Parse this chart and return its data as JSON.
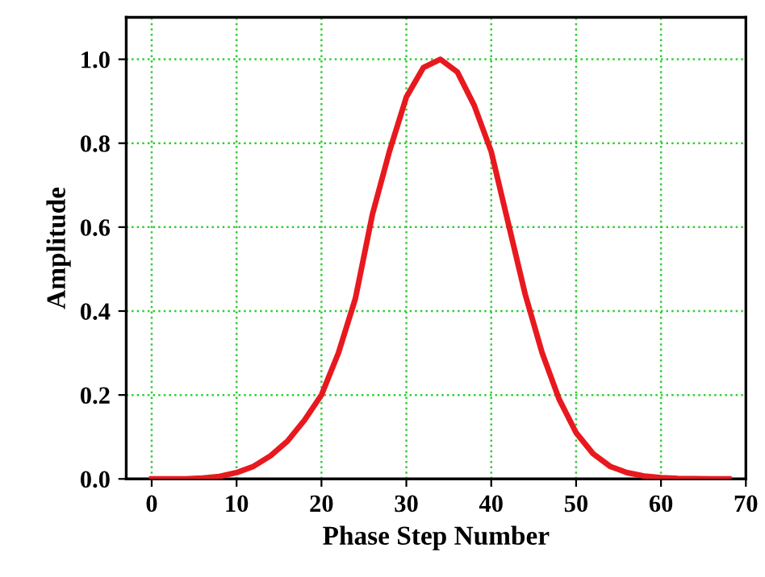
{
  "chart_data": {
    "type": "line",
    "xlabel": "Phase Step Number",
    "ylabel": "Amplitude",
    "x": [
      0,
      4,
      6,
      8,
      10,
      12,
      14,
      16,
      18,
      20,
      22,
      24,
      26,
      28,
      30,
      32,
      34,
      36,
      38,
      40,
      42,
      44,
      46,
      48,
      50,
      52,
      54,
      56,
      58,
      60,
      62,
      66,
      68
    ],
    "series": [
      {
        "color": "#e8191e",
        "values": [
          0.0,
          0.0,
          0.002,
          0.006,
          0.015,
          0.03,
          0.055,
          0.09,
          0.14,
          0.2,
          0.3,
          0.43,
          0.63,
          0.78,
          0.91,
          0.98,
          1.0,
          0.97,
          0.89,
          0.78,
          0.61,
          0.44,
          0.3,
          0.19,
          0.11,
          0.06,
          0.03,
          0.015,
          0.007,
          0.003,
          0.001,
          0.0,
          0.0
        ]
      }
    ],
    "xlim": [
      -3,
      70
    ],
    "ylim": [
      0,
      1.1
    ],
    "xticks": [
      0,
      10,
      20,
      30,
      40,
      50,
      60,
      70
    ],
    "yticks": [
      {
        "value": 0,
        "label": "0.0"
      },
      {
        "value": 0.2,
        "label": "0.2"
      },
      {
        "value": 0.4,
        "label": "0.4"
      },
      {
        "value": 0.6,
        "label": "0.6"
      },
      {
        "value": 0.8,
        "label": "0.8"
      },
      {
        "value": 1.0,
        "label": "1.0"
      }
    ],
    "grid": true,
    "marker": "none",
    "line_style": "solid"
  }
}
